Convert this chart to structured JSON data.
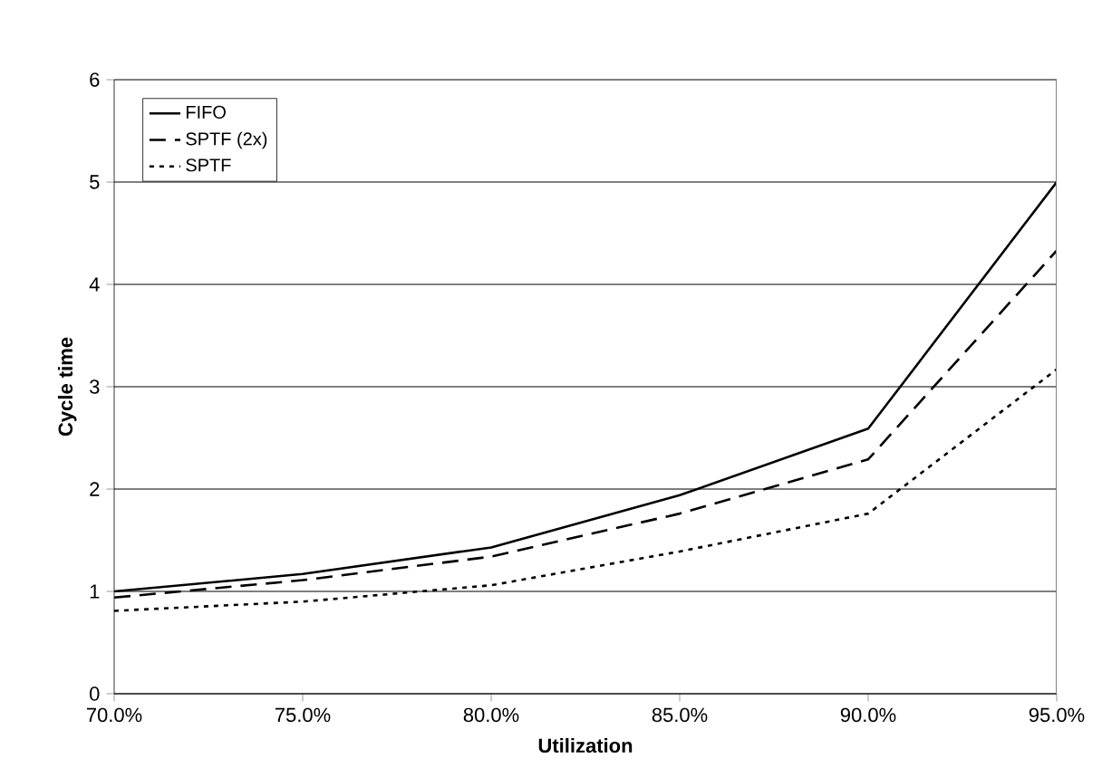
{
  "chart_data": {
    "type": "line",
    "xlabel": "Utilization",
    "ylabel": "Cycle time",
    "x": [
      70,
      75,
      80,
      85,
      90,
      95
    ],
    "series": [
      {
        "name": "FIFO",
        "color": "#000000",
        "line_style": "solid",
        "values": [
          1.0,
          1.17,
          1.43,
          1.94,
          2.59,
          5.0
        ]
      },
      {
        "name": "SPTF (2x)",
        "color": "#000000",
        "line_style": "dashed",
        "values": [
          0.94,
          1.11,
          1.34,
          1.76,
          2.29,
          4.33
        ]
      },
      {
        "name": "SPTF",
        "color": "#000000",
        "line_style": "dotted",
        "values": [
          0.81,
          0.9,
          1.06,
          1.39,
          1.76,
          3.17
        ]
      }
    ],
    "xlim": [
      70,
      95
    ],
    "ylim": [
      0,
      6
    ],
    "xticks": [
      {
        "value": 70,
        "label": "70.0%"
      },
      {
        "value": 75,
        "label": "75.0%"
      },
      {
        "value": 80,
        "label": "80.0%"
      },
      {
        "value": 85,
        "label": "85.0%"
      },
      {
        "value": 90,
        "label": "90.0%"
      },
      {
        "value": 95,
        "label": "95.0%"
      }
    ],
    "yticks": [
      0,
      1,
      2,
      3,
      4,
      5,
      6
    ],
    "grid": "y",
    "legend": "top left",
    "marker": "none"
  }
}
